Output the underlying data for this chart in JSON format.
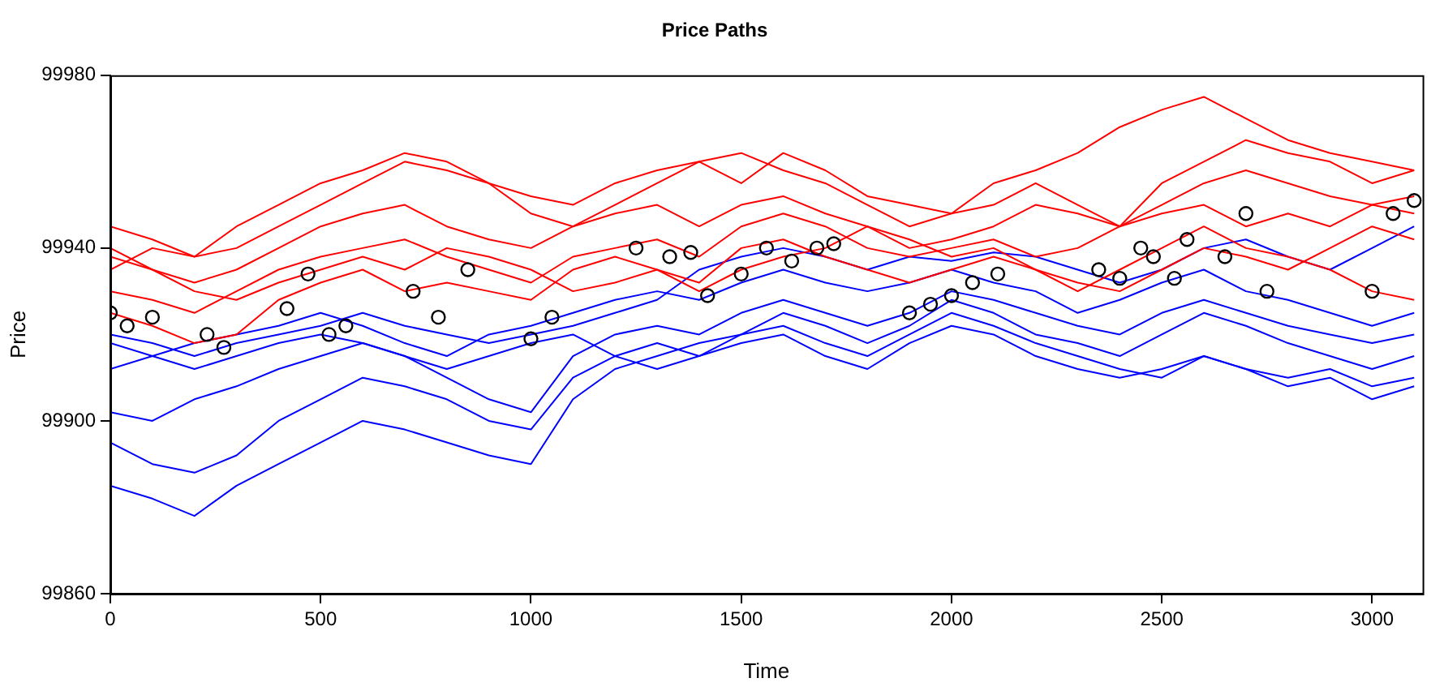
{
  "chart_data": {
    "type": "line",
    "title": "Price Paths",
    "xlabel": "Time",
    "ylabel": "Price",
    "xlim": [
      0,
      3120
    ],
    "xticks": [
      0,
      500,
      1000,
      1500,
      2000,
      2500,
      3000
    ],
    "ylim": [
      99860,
      99980
    ],
    "yticks": [
      99860,
      99900,
      99940,
      99980
    ],
    "grid": false,
    "legend": false,
    "line_style": "solid",
    "x": [
      0,
      100,
      200,
      300,
      400,
      500,
      600,
      700,
      800,
      900,
      1000,
      1100,
      1200,
      1300,
      1400,
      1500,
      1600,
      1700,
      1800,
      1900,
      2000,
      2100,
      2200,
      2300,
      2400,
      2500,
      2600,
      2700,
      2800,
      2900,
      3000,
      3100
    ],
    "series": [
      {
        "color": "#ff0000",
        "values": [
          99935,
          99940,
          99938,
          99945,
          99950,
          99955,
          99958,
          99962,
          99960,
          99955,
          99952,
          99950,
          99955,
          99958,
          99960,
          99955,
          99962,
          99958,
          99952,
          99950,
          99948,
          99955,
          99958,
          99962,
          99968,
          99972,
          99975,
          99970,
          99965,
          99962,
          99960,
          99958
        ]
      },
      {
        "color": "#ff0000",
        "values": [
          99945,
          99942,
          99938,
          99940,
          99945,
          99950,
          99955,
          99960,
          99958,
          99955,
          99948,
          99945,
          99950,
          99955,
          99960,
          99962,
          99958,
          99955,
          99950,
          99945,
          99948,
          99950,
          99955,
          99950,
          99945,
          99955,
          99960,
          99965,
          99962,
          99960,
          99955,
          99958
        ]
      },
      {
        "color": "#ff0000",
        "values": [
          99938,
          99935,
          99932,
          99935,
          99940,
          99945,
          99948,
          99950,
          99945,
          99942,
          99940,
          99945,
          99948,
          99950,
          99945,
          99950,
          99952,
          99948,
          99945,
          99940,
          99942,
          99945,
          99950,
          99948,
          99945,
          99950,
          99955,
          99958,
          99955,
          99952,
          99950,
          99952
        ]
      },
      {
        "color": "#ff0000",
        "values": [
          99930,
          99928,
          99925,
          99930,
          99935,
          99938,
          99940,
          99942,
          99938,
          99935,
          99932,
          99938,
          99940,
          99942,
          99938,
          99945,
          99948,
          99945,
          99940,
          99938,
          99940,
          99942,
          99938,
          99940,
          99945,
          99948,
          99950,
          99945,
          99948,
          99945,
          99950,
          99948
        ]
      },
      {
        "color": "#ff0000",
        "values": [
          99925,
          99922,
          99918,
          99920,
          99928,
          99932,
          99935,
          99930,
          99932,
          99930,
          99928,
          99935,
          99938,
          99935,
          99932,
          99940,
          99942,
          99938,
          99935,
          99932,
          99935,
          99938,
          99935,
          99930,
          99935,
          99940,
          99945,
          99940,
          99938,
          99935,
          99930,
          99928
        ]
      },
      {
        "color": "#ff0000",
        "values": [
          99940,
          99935,
          99930,
          99928,
          99932,
          99935,
          99938,
          99935,
          99940,
          99938,
          99935,
          99930,
          99932,
          99935,
          99930,
          99935,
          99938,
          99940,
          99945,
          99942,
          99938,
          99940,
          99935,
          99932,
          99930,
          99935,
          99940,
          99938,
          99935,
          99940,
          99945,
          99942
        ]
      },
      {
        "color": "#0000ff",
        "values": [
          99885,
          99882,
          99878,
          99885,
          99890,
          99895,
          99900,
          99898,
          99895,
          99892,
          99890,
          99905,
          99912,
          99915,
          99918,
          99920,
          99922,
          99918,
          99915,
          99920,
          99925,
          99922,
          99918,
          99915,
          99912,
          99910,
          99915,
          99912,
          99910,
          99912,
          99908,
          99910
        ]
      },
      {
        "color": "#0000ff",
        "values": [
          99895,
          99890,
          99888,
          99892,
          99900,
          99905,
          99910,
          99908,
          99905,
          99900,
          99898,
          99910,
          99915,
          99918,
          99915,
          99920,
          99925,
          99922,
          99918,
          99922,
          99928,
          99925,
          99920,
          99918,
          99915,
          99920,
          99925,
          99922,
          99918,
          99915,
          99912,
          99915
        ]
      },
      {
        "color": "#0000ff",
        "values": [
          99902,
          99900,
          99905,
          99908,
          99912,
          99915,
          99918,
          99915,
          99910,
          99905,
          99902,
          99915,
          99920,
          99922,
          99920,
          99925,
          99928,
          99925,
          99922,
          99925,
          99930,
          99928,
          99925,
          99922,
          99920,
          99925,
          99928,
          99925,
          99922,
          99920,
          99918,
          99920
        ]
      },
      {
        "color": "#0000ff",
        "values": [
          99912,
          99915,
          99918,
          99920,
          99922,
          99925,
          99922,
          99918,
          99915,
          99920,
          99922,
          99925,
          99928,
          99930,
          99928,
          99932,
          99935,
          99932,
          99930,
          99932,
          99935,
          99932,
          99930,
          99925,
          99928,
          99932,
          99935,
          99930,
          99928,
          99925,
          99922,
          99925
        ]
      },
      {
        "color": "#0000ff",
        "values": [
          99920,
          99918,
          99915,
          99918,
          99920,
          99922,
          99925,
          99922,
          99920,
          99918,
          99920,
          99922,
          99925,
          99928,
          99935,
          99938,
          99940,
          99938,
          99935,
          99938,
          99937,
          99939,
          99938,
          99935,
          99932,
          99935,
          99940,
          99942,
          99938,
          99935,
          99940,
          99945
        ]
      },
      {
        "color": "#0000ff",
        "values": [
          99918,
          99915,
          99912,
          99915,
          99918,
          99920,
          99918,
          99915,
          99912,
          99915,
          99918,
          99920,
          99915,
          99912,
          99915,
          99918,
          99920,
          99915,
          99912,
          99918,
          99922,
          99920,
          99915,
          99912,
          99910,
          99912,
          99915,
          99912,
          99908,
          99910,
          99905,
          99908
        ]
      },
      {
        "type": "scatter",
        "marker": "circle",
        "color": "#000000",
        "x": [
          0,
          40,
          100,
          230,
          270,
          420,
          470,
          520,
          560,
          720,
          780,
          850,
          1000,
          1050,
          1250,
          1330,
          1380,
          1420,
          1500,
          1560,
          1620,
          1680,
          1720,
          1900,
          1950,
          2000,
          2050,
          2110,
          2350,
          2400,
          2450,
          2480,
          2530,
          2560,
          2650,
          2700,
          2750,
          3000,
          3050,
          3100
        ],
        "values": [
          99925,
          99922,
          99924,
          99920,
          99917,
          99926,
          99934,
          99920,
          99922,
          99930,
          99924,
          99935,
          99919,
          99924,
          99940,
          99938,
          99939,
          99929,
          99934,
          99940,
          99937,
          99940,
          99941,
          99925,
          99927,
          99929,
          99932,
          99934,
          99935,
          99933,
          99940,
          99938,
          99933,
          99942,
          99938,
          99948,
          99930,
          99930,
          99948,
          99951
        ]
      }
    ]
  }
}
